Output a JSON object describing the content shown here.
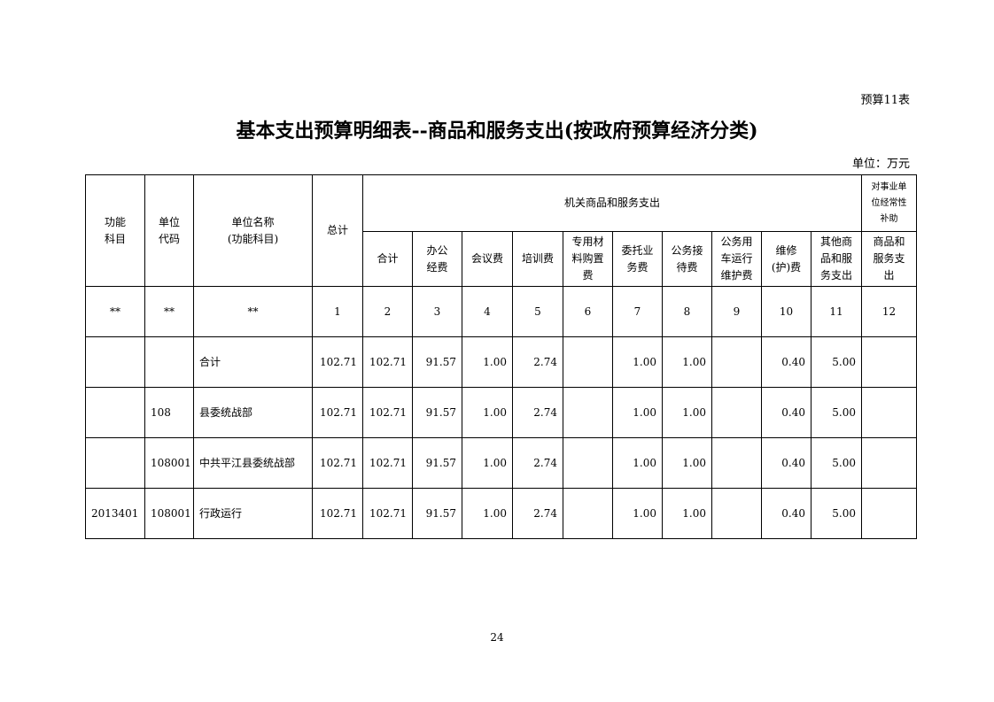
{
  "table_code": "预算11表",
  "title": "基本支出预算明细表--商品和服务支出(按政府预算经济分类)",
  "unit": "单位：万元",
  "headers": {
    "func": "功能\n科目",
    "unit_code": "单位\n代码",
    "unit_name": "单位名称\n(功能科目)",
    "total": "总计",
    "group1": "机关商品和服务支出",
    "group2": "对事业单\n位经常性\n补助",
    "sub": [
      "合计",
      "办公\n经费",
      "会议费",
      "培训费",
      "专用材\n料购置\n费",
      "委托业\n务费",
      "公务接\n待费",
      "公务用\n车运行\n维护费",
      "维修\n(护)费",
      "其他商\n品和服\n务支出",
      "商品和\n服务支\n出"
    ]
  },
  "index_row": [
    "**",
    "**",
    "**",
    "1",
    "2",
    "3",
    "4",
    "5",
    "6",
    "7",
    "8",
    "9",
    "10",
    "11",
    "12"
  ],
  "rows": [
    [
      "",
      "",
      "合计",
      "102.71",
      "102.71",
      "91.57",
      "1.00",
      "2.74",
      "",
      "1.00",
      "1.00",
      "",
      "0.40",
      "5.00",
      ""
    ],
    [
      "",
      "108",
      "县委统战部",
      "102.71",
      "102.71",
      "91.57",
      "1.00",
      "2.74",
      "",
      "1.00",
      "1.00",
      "",
      "0.40",
      "5.00",
      ""
    ],
    [
      "",
      "108001",
      "中共平江县委统战部",
      "102.71",
      "102.71",
      "91.57",
      "1.00",
      "2.74",
      "",
      "1.00",
      "1.00",
      "",
      "0.40",
      "5.00",
      ""
    ],
    [
      "2013401",
      "108001",
      "行政运行",
      "102.71",
      "102.71",
      "91.57",
      "1.00",
      "2.74",
      "",
      "1.00",
      "1.00",
      "",
      "0.40",
      "5.00",
      ""
    ]
  ],
  "page_number": "24"
}
